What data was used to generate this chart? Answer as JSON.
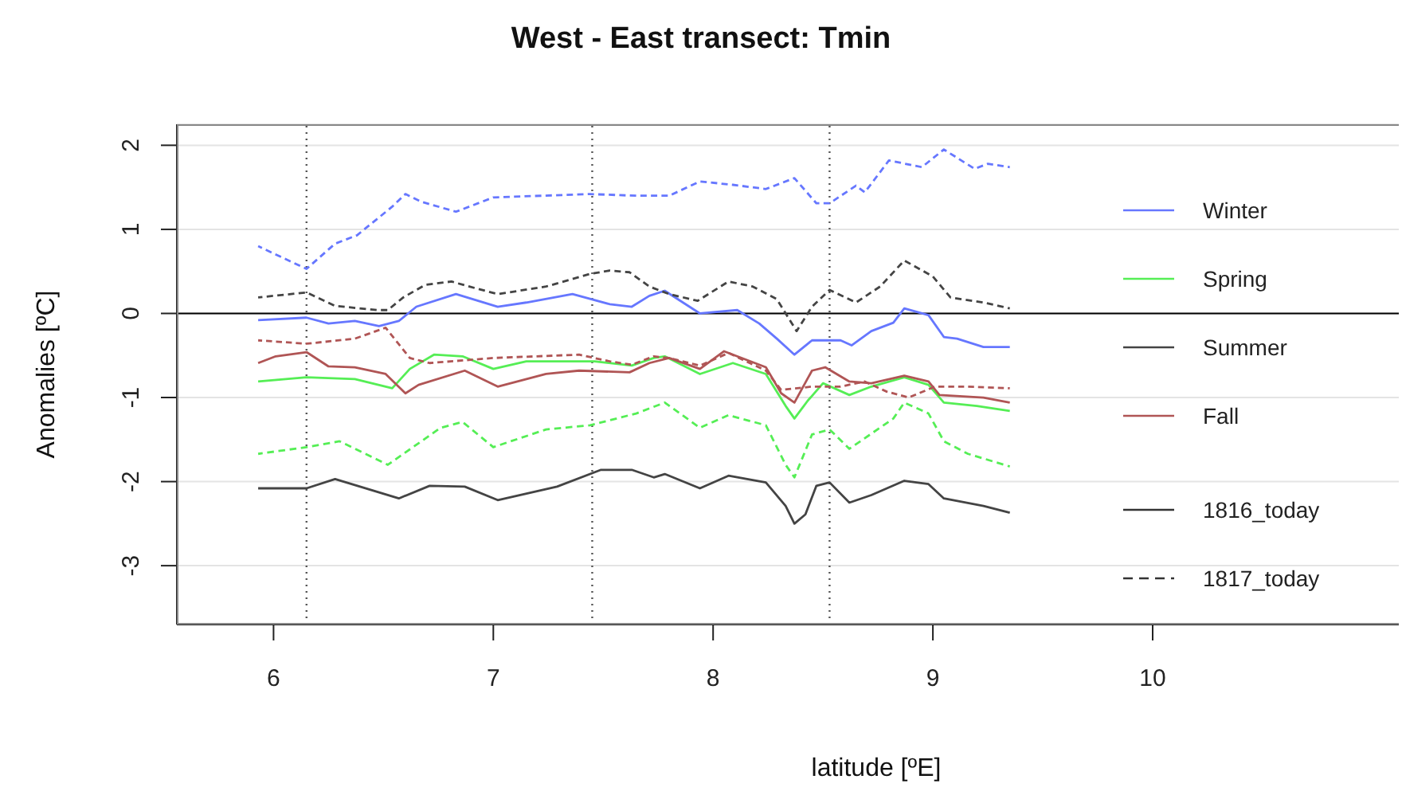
{
  "chart_data": {
    "type": "line",
    "title": "West - East transect: Tmin",
    "xlabel": "latitude [ºE]",
    "ylabel": "Anomalies [ºC]",
    "xlim": [
      5.56,
      11.12
    ],
    "xticks": [
      6,
      7,
      8,
      9,
      10
    ],
    "ylim": [
      -3.7,
      2.25
    ],
    "yticks": [
      -3,
      -2,
      -1,
      0,
      1,
      2
    ],
    "grid": "y",
    "legend": "right",
    "annotations": [
      "1816_today",
      "1817_today"
    ],
    "ref_lines": [
      {
        "axis": "y",
        "value": 0,
        "color": "#000000",
        "line_style": "solid"
      },
      {
        "axis": "x",
        "value": 6.15,
        "color": "#555555",
        "line_style": "dotted"
      },
      {
        "axis": "x",
        "value": 7.45,
        "color": "#555555",
        "line_style": "dotted"
      },
      {
        "axis": "x",
        "value": 8.53,
        "color": "#555555",
        "line_style": "dotted"
      }
    ],
    "series": [
      {
        "name": "Winter",
        "color": "#6677ff",
        "line_style": "solid",
        "x": [
          5.93,
          6.15,
          6.25,
          6.37,
          6.48,
          6.57,
          6.65,
          6.83,
          7.02,
          7.15,
          7.36,
          7.53,
          7.63,
          7.71,
          7.78,
          7.94,
          8.11,
          8.21,
          8.29,
          8.37,
          8.45,
          8.58,
          8.63,
          8.72,
          8.82,
          8.87,
          8.98,
          9.05,
          9.11,
          9.23,
          9.35
        ],
        "values": [
          -0.08,
          -0.05,
          -0.12,
          -0.09,
          -0.15,
          -0.09,
          0.08,
          0.23,
          0.08,
          0.13,
          0.23,
          0.11,
          0.08,
          0.21,
          0.27,
          0,
          0.04,
          -0.12,
          -0.3,
          -0.49,
          -0.32,
          -0.32,
          -0.38,
          -0.21,
          -0.11,
          0.06,
          -0.02,
          -0.28,
          -0.3,
          -0.4,
          -0.4
        ]
      },
      {
        "name": "Spring",
        "color": "#55ee55",
        "line_style": "solid",
        "x": [
          5.93,
          6.15,
          6.37,
          6.54,
          6.62,
          6.73,
          6.86,
          7.0,
          7.15,
          7.46,
          7.63,
          7.73,
          7.78,
          7.94,
          8.09,
          8.24,
          8.33,
          8.37,
          8.43,
          8.5,
          8.62,
          8.72,
          8.87,
          8.98,
          9.05,
          9.2,
          9.35
        ],
        "values": [
          -0.81,
          -0.76,
          -0.78,
          -0.89,
          -0.66,
          -0.49,
          -0.51,
          -0.66,
          -0.57,
          -0.57,
          -0.62,
          -0.53,
          -0.51,
          -0.72,
          -0.59,
          -0.72,
          -1.1,
          -1.25,
          -1.04,
          -0.83,
          -0.97,
          -0.87,
          -0.76,
          -0.85,
          -1.06,
          -1.1,
          -1.16
        ]
      },
      {
        "name": "Summer",
        "color": "#444444",
        "line_style": "solid",
        "x": [
          5.93,
          6.15,
          6.28,
          6.57,
          6.71,
          6.87,
          7.02,
          7.29,
          7.49,
          7.63,
          7.73,
          7.78,
          7.94,
          8.07,
          8.24,
          8.33,
          8.37,
          8.42,
          8.47,
          8.53,
          8.62,
          8.72,
          8.87,
          8.98,
          9.05,
          9.23,
          9.35
        ],
        "values": [
          -2.08,
          -2.08,
          -1.97,
          -2.2,
          -2.05,
          -2.06,
          -2.22,
          -2.06,
          -1.86,
          -1.86,
          -1.95,
          -1.91,
          -2.08,
          -1.93,
          -2.01,
          -2.29,
          -2.5,
          -2.39,
          -2.05,
          -2.01,
          -2.25,
          -2.16,
          -1.99,
          -2.03,
          -2.2,
          -2.29,
          -2.37
        ]
      },
      {
        "name": "Fall",
        "color": "#b05555",
        "line_style": "solid",
        "x": [
          5.93,
          6.01,
          6.15,
          6.25,
          6.37,
          6.51,
          6.6,
          6.66,
          6.87,
          7.02,
          7.24,
          7.39,
          7.62,
          7.71,
          7.8,
          7.94,
          8.05,
          8.24,
          8.31,
          8.37,
          8.45,
          8.51,
          8.62,
          8.72,
          8.87,
          8.98,
          9.03,
          9.23,
          9.35
        ],
        "values": [
          -0.59,
          -0.51,
          -0.46,
          -0.63,
          -0.64,
          -0.72,
          -0.95,
          -0.85,
          -0.68,
          -0.87,
          -0.72,
          -0.68,
          -0.7,
          -0.59,
          -0.53,
          -0.66,
          -0.45,
          -0.64,
          -0.95,
          -1.06,
          -0.68,
          -0.64,
          -0.81,
          -0.83,
          -0.74,
          -0.81,
          -0.97,
          -1.0,
          -1.06
        ]
      },
      {
        "color": "#6677ff",
        "line_style": "dashed",
        "x": [
          5.93,
          6.15,
          6.28,
          6.38,
          6.54,
          6.6,
          6.67,
          6.83,
          7.0,
          7.44,
          7.65,
          7.8,
          7.94,
          8.09,
          8.24,
          8.37,
          8.47,
          8.53,
          8.65,
          8.69,
          8.8,
          8.95,
          9.05,
          9.19,
          9.25,
          9.35
        ],
        "values": [
          0.8,
          0.53,
          0.83,
          0.93,
          1.27,
          1.42,
          1.33,
          1.21,
          1.38,
          1.42,
          1.4,
          1.4,
          1.57,
          1.53,
          1.48,
          1.61,
          1.31,
          1.31,
          1.52,
          1.44,
          1.82,
          1.74,
          1.95,
          1.72,
          1.78,
          1.74
        ]
      },
      {
        "color": "#55ee55",
        "line_style": "dashed",
        "x": [
          5.93,
          6.15,
          6.3,
          6.52,
          6.76,
          6.86,
          7.0,
          7.24,
          7.44,
          7.65,
          7.78,
          7.94,
          8.07,
          8.24,
          8.33,
          8.37,
          8.45,
          8.53,
          8.62,
          8.82,
          8.87,
          8.98,
          9.05,
          9.16,
          9.35
        ],
        "values": [
          -1.67,
          -1.59,
          -1.52,
          -1.8,
          -1.36,
          -1.29,
          -1.59,
          -1.38,
          -1.33,
          -1.19,
          -1.06,
          -1.36,
          -1.21,
          -1.33,
          -1.8,
          -1.95,
          -1.44,
          -1.38,
          -1.61,
          -1.25,
          -1.06,
          -1.19,
          -1.52,
          -1.67,
          -1.82
        ]
      },
      {
        "color": "#444444",
        "line_style": "dashed",
        "x": [
          5.93,
          6.15,
          6.28,
          6.47,
          6.52,
          6.59,
          6.69,
          6.81,
          6.89,
          7.02,
          7.24,
          7.44,
          7.53,
          7.62,
          7.71,
          7.8,
          7.93,
          8.07,
          8.18,
          8.29,
          8.38,
          8.45,
          8.53,
          8.65,
          8.76,
          8.87,
          9.0,
          9.08,
          9.23,
          9.35
        ],
        "values": [
          0.19,
          0.25,
          0.09,
          0.04,
          0.04,
          0.19,
          0.34,
          0.38,
          0.32,
          0.23,
          0.32,
          0.47,
          0.51,
          0.49,
          0.32,
          0.23,
          0.15,
          0.38,
          0.32,
          0.17,
          -0.21,
          0.08,
          0.28,
          0.13,
          0.32,
          0.63,
          0.44,
          0.19,
          0.13,
          0.06
        ]
      },
      {
        "color": "#b05555",
        "line_style": "dashed",
        "x": [
          5.93,
          6.15,
          6.37,
          6.51,
          6.62,
          6.71,
          7.0,
          7.39,
          7.53,
          7.63,
          7.73,
          7.8,
          7.94,
          8.07,
          8.24,
          8.31,
          8.45,
          8.58,
          8.69,
          8.79,
          8.89,
          9.01,
          9.16,
          9.35
        ],
        "values": [
          -0.32,
          -0.36,
          -0.3,
          -0.17,
          -0.53,
          -0.59,
          -0.53,
          -0.49,
          -0.57,
          -0.61,
          -0.51,
          -0.53,
          -0.62,
          -0.47,
          -0.68,
          -0.91,
          -0.87,
          -0.87,
          -0.81,
          -0.93,
          -1.0,
          -0.87,
          -0.87,
          -0.89
        ]
      }
    ]
  }
}
